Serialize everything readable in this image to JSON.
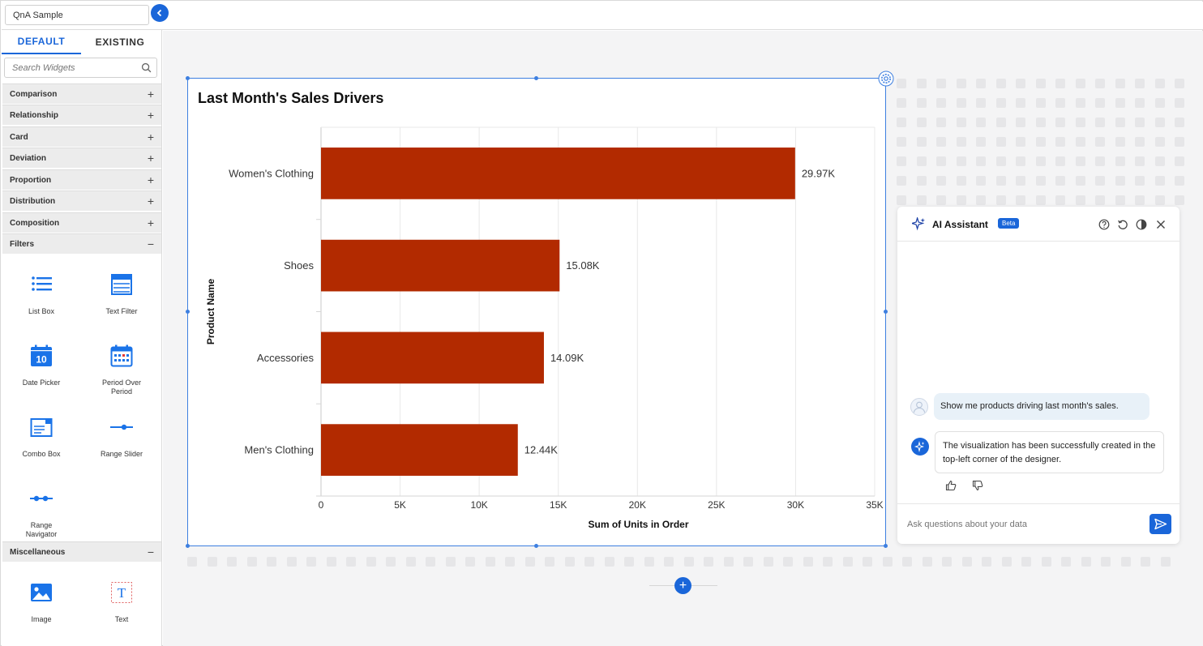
{
  "topbar": {
    "title_value": "QnA Sample"
  },
  "sidebar": {
    "tabs": {
      "default": "DEFAULT",
      "existing": "EXISTING"
    },
    "search_placeholder": "Search Widgets",
    "categories": {
      "comparison": "Comparison",
      "relationship": "Relationship",
      "card": "Card",
      "deviation": "Deviation",
      "proportion": "Proportion",
      "distribution": "Distribution",
      "composition": "Composition",
      "filters": "Filters",
      "miscellaneous": "Miscellaneous"
    },
    "expand_sign": "+",
    "collapse_sign": "−",
    "filter_widgets": {
      "list_box": "List Box",
      "text_filter": "Text Filter",
      "date_picker": "Date Picker",
      "date_picker_day": "10",
      "period_over_period": "Period Over Period",
      "combo_box": "Combo Box",
      "range_slider": "Range Slider",
      "range_navigator": "Range Navigator"
    },
    "misc_widgets": {
      "image": "Image",
      "text": "Text",
      "text_glyph": "T"
    }
  },
  "chart_data": {
    "type": "bar",
    "orientation": "horizontal",
    "title": "Last Month's Sales Drivers",
    "xlabel": "Sum of Units in Order",
    "ylabel": "Product Name",
    "categories": [
      "Women's Clothing",
      "Shoes",
      "Accessories",
      "Men's Clothing"
    ],
    "values": [
      29970,
      15080,
      14090,
      12440
    ],
    "data_labels": [
      "29.97K",
      "15.08K",
      "14.09K",
      "12.44K"
    ],
    "xlim": [
      0,
      35000
    ],
    "x_ticks": [
      0,
      5000,
      10000,
      15000,
      20000,
      25000,
      30000,
      35000
    ],
    "x_tick_labels": [
      "0",
      "5K",
      "10K",
      "15K",
      "20K",
      "25K",
      "30K",
      "35K"
    ],
    "grid": true,
    "bar_color": "#b22a00"
  },
  "ai_assistant": {
    "title": "AI Assistant",
    "badge": "Beta",
    "user_message": "Show me products driving last month's sales.",
    "bot_message": "The visualization has been successfully created in the top-left corner of the designer.",
    "input_placeholder": "Ask questions about your data"
  },
  "canvas": {
    "add_label": "+"
  },
  "colors": {
    "accent": "#1a66d9",
    "bar": "#b22a00"
  }
}
